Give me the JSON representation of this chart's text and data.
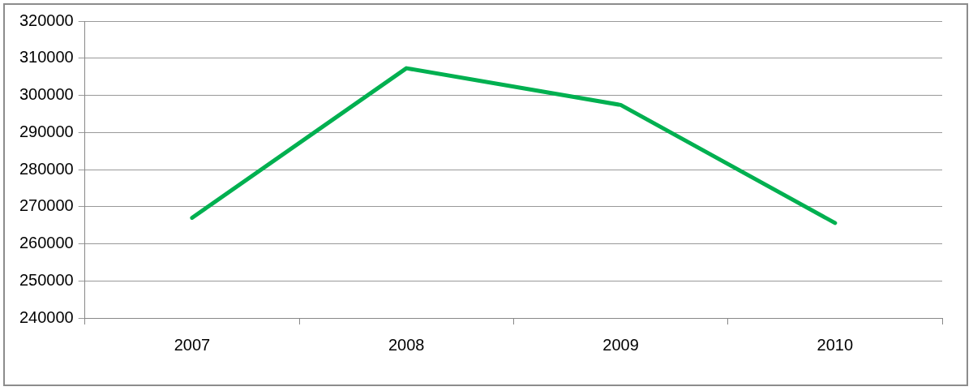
{
  "chart_data": {
    "type": "line",
    "categories": [
      "2007",
      "2008",
      "2009",
      "2010"
    ],
    "series": [
      {
        "color": "#00b050",
        "values": [
          267000,
          307300,
          297400,
          265600
        ]
      }
    ],
    "ylim": [
      240000,
      320000
    ],
    "yticks": [
      240000,
      250000,
      260000,
      270000,
      280000,
      290000,
      300000,
      310000,
      320000
    ],
    "grid": "y",
    "legend": false,
    "marker": "none",
    "line_style": "solid"
  }
}
